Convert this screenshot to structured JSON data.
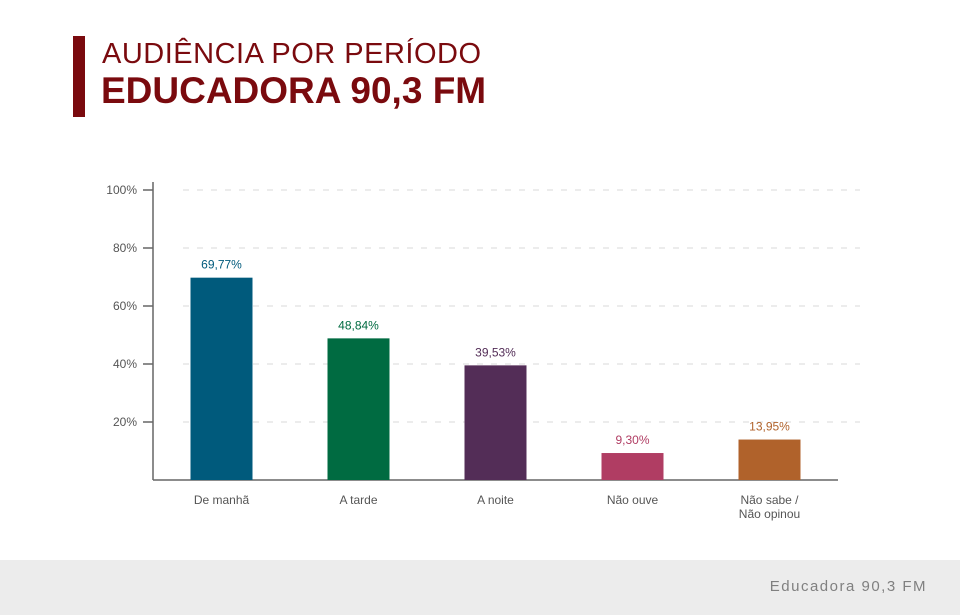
{
  "header": {
    "title_line1": "AUDIÊNCIA POR PERÍODO",
    "title_line2": "EDUCADORA 90,3 FM",
    "accent_color": "#7a0a0e"
  },
  "footer": {
    "text": "Educadora 90,3 FM"
  },
  "chart_data": {
    "type": "bar",
    "title": "",
    "xlabel": "",
    "ylabel": "",
    "ylim": [
      0,
      100
    ],
    "yticks": [
      "20%",
      "40%",
      "60%",
      "80%",
      "100%"
    ],
    "grid": true,
    "categories": [
      [
        "De manhã"
      ],
      [
        "A tarde"
      ],
      [
        "A noite"
      ],
      [
        "Não ouve"
      ],
      [
        "Não sabe /",
        "Não opinou"
      ]
    ],
    "values": [
      69.77,
      48.84,
      39.53,
      9.3,
      13.95
    ],
    "value_labels": [
      "69,77%",
      "48,84%",
      "39,53%",
      "9,30%",
      "13,95%"
    ],
    "colors": [
      "#005a7c",
      "#006b41",
      "#532d57",
      "#b03d63",
      "#b0622b"
    ]
  }
}
